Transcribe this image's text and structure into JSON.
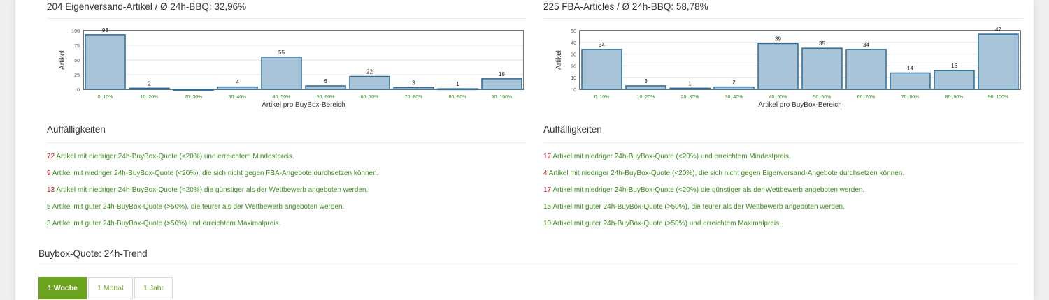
{
  "panels": [
    {
      "title": "204 Eigenversand-Artikel / Ø 24h-BBQ: 32,96%",
      "section_title": "Auffälligkeiten",
      "findings": [
        {
          "count": "72",
          "text": " Artikel mit niedriger 24h-BuyBox-Quote (<20%) und erreichtem Mindestpreis.",
          "alert": true
        },
        {
          "count": "9",
          "text": " Artikel mit niedriger 24h-BuyBox-Quote (<20%), die sich nicht gegen FBA-Angebote durchsetzen können.",
          "alert": true
        },
        {
          "count": "13",
          "text": " Artikel mit niedriger 24h-BuyBox-Quote (<20%) die günstiger als der Wettbewerb angeboten werden.",
          "alert": true
        },
        {
          "count": "5",
          "text": " Artikel mit guter 24h-BuyBox-Quote (>50%), die teurer als der Wettbewerb angeboten werden.",
          "alert": false
        },
        {
          "count": "3",
          "text": " Artikel mit guter 24h-BuyBox-Quote (>50%) und erreichtem Maximalpreis.",
          "alert": false
        }
      ]
    },
    {
      "title": "225 FBA-Articles / Ø 24h-BBQ: 58,78%",
      "section_title": "Auffälligkeiten",
      "findings": [
        {
          "count": "17",
          "text": " Artikel mit niedriger 24h-BuyBox-Quote (<20%) und erreichtem Mindestpreis.",
          "alert": true
        },
        {
          "count": "4",
          "text": " Artikel mit niedriger 24h-BuyBox-Quote (<20%), die sich nicht gegen Eigenversand-Angebote durchsetzen können.",
          "alert": true
        },
        {
          "count": "17",
          "text": " Artikel mit niedriger 24h-BuyBox-Quote (<20%) die günstiger als der Wettbewerb angeboten werden.",
          "alert": true
        },
        {
          "count": "15",
          "text": " Artikel mit guter 24h-BuyBox-Quote (>50%), die teurer als der Wettbewerb angeboten werden.",
          "alert": false
        },
        {
          "count": "10",
          "text": " Artikel mit guter 24h-BuyBox-Quote (>50%) und erreichtem Maximalpreis.",
          "alert": false
        }
      ]
    }
  ],
  "trend": {
    "title": "Buybox-Quote: 24h-Trend",
    "tabs": [
      {
        "label": "1 Woche",
        "active": true
      },
      {
        "label": "1 Monat",
        "active": false
      },
      {
        "label": "1 Jahr",
        "active": false
      }
    ]
  },
  "colors": {
    "bar_fill": "#a8c4d9",
    "bar_stroke": "#2e6a94",
    "tick_label": "#3d8b1f",
    "alert": "#d11a1a",
    "ok": "#3d8b1f",
    "accent": "#6aa31c"
  },
  "chart_data": [
    {
      "type": "bar",
      "categories": [
        "0..10%",
        "10..20%",
        "20..30%",
        "30..40%",
        "40..50%",
        "50..60%",
        "60..70%",
        "70..80%",
        "80..90%",
        "90..100%"
      ],
      "values": [
        93,
        2,
        0,
        4,
        55,
        6,
        22,
        3,
        1,
        18
      ],
      "data_labels": [
        "93",
        "2",
        "",
        "4",
        "55",
        "6",
        "22",
        "3",
        "1",
        "18"
      ],
      "title": "",
      "xlabel": "Artikel pro BuyBox-Bereich",
      "ylabel": "Artikel",
      "ylim": [
        0,
        100
      ],
      "yticks": [
        0,
        25,
        50,
        75,
        100
      ],
      "grid": true
    },
    {
      "type": "bar",
      "categories": [
        "0..10%",
        "10..20%",
        "20..30%",
        "30..40%",
        "40..50%",
        "50..60%",
        "60..70%",
        "70..80%",
        "80..90%",
        "90..100%"
      ],
      "values": [
        34,
        3,
        1,
        2,
        39,
        35,
        34,
        14,
        16,
        47
      ],
      "data_labels": [
        "34",
        "3",
        "1",
        "2",
        "39",
        "35",
        "34",
        "14",
        "16",
        "47"
      ],
      "title": "",
      "xlabel": "Artikel pro BuyBox-Bereich",
      "ylabel": "Artikel",
      "ylim": [
        0,
        50
      ],
      "yticks": [
        0,
        10,
        20,
        30,
        40,
        50
      ],
      "grid": true
    }
  ]
}
